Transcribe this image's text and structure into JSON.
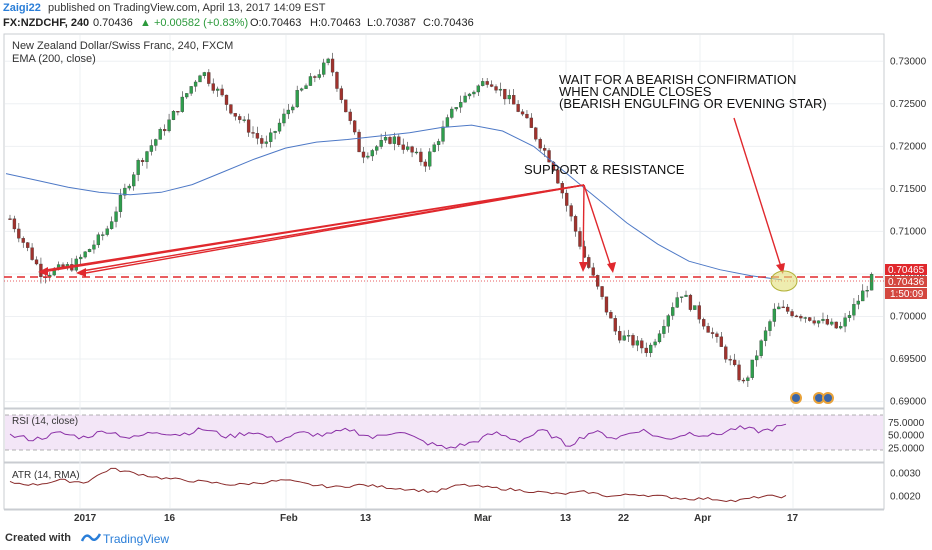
{
  "header": {
    "author": "Zaigi22",
    "published": "published on TradingView.com, April 13, 2017 14:09 EST",
    "symbol": "FX:NZDCHF, 240",
    "price": "0.70436",
    "change": "▲ +0.00582 (+0.83%)",
    "open": "O:0.70463",
    "high": "H:0.70463",
    "low": "L:0.70387",
    "close": "C:0.70436"
  },
  "legend": {
    "instrument": "New Zealand Dollar/Swiss Franc, 240, FXCM",
    "ema": "EMA (200, close)"
  },
  "annotations": {
    "wait_line1": "WAIT FOR A BEARISH CONFIRMATION",
    "wait_line2": "WHEN CANDLE CLOSES",
    "wait_line3": "(BEARISH ENGULFING OR EVENING STAR)",
    "support": "SUPPORT & RESISTANCE"
  },
  "badges": {
    "price_top": "0.70465",
    "price_current": "0.70436",
    "countdown": "1:50:09"
  },
  "colors": {
    "up": "#2f9e4d",
    "down": "#a0322d",
    "ema": "#4e79c6",
    "annotation": "#e0282d",
    "rsi": "#8a2fa6",
    "atr": "#8a2a2a"
  },
  "chart_data": [
    {
      "type": "candlestick",
      "title": "New Zealand Dollar/Swiss Franc, 240, FXCM",
      "y_ticks": [
        "0.73000",
        "0.72500",
        "0.72000",
        "0.71500",
        "0.71000",
        "0.70500",
        "0.70000",
        "0.69500",
        "0.69000"
      ],
      "ylim": [
        0.6896,
        0.7325
      ],
      "x_ticks": [
        "2017",
        "16",
        "Feb",
        "13",
        "Mar",
        "13",
        "22",
        "Apr",
        "17"
      ],
      "series": [
        {
          "name": "EMA (200, close)",
          "values": [
            0.7168,
            0.716,
            0.7152,
            0.7146,
            0.7143,
            0.7146,
            0.7155,
            0.717,
            0.7185,
            0.7198,
            0.7205,
            0.7208,
            0.7212,
            0.7216,
            0.7222,
            0.7225,
            0.7218,
            0.72,
            0.717,
            0.714,
            0.711,
            0.7085,
            0.7065,
            0.7055,
            0.7048,
            0.7043
          ]
        },
        {
          "name": "Close (approx.)",
          "values": [
            0.7115,
            0.705,
            0.706,
            0.71,
            0.718,
            0.723,
            0.729,
            0.724,
            0.72,
            0.726,
            0.73,
            0.719,
            0.721,
            0.718,
            0.725,
            0.728,
            0.724,
            0.718,
            0.707,
            0.698,
            0.696,
            0.703,
            0.698,
            0.692,
            0.701,
            0.7,
            0.6985,
            0.7044
          ]
        }
      ],
      "horizontal_lines": [
        0.70465,
        0.70436
      ],
      "annotations": [
        "SUPPORT & RESISTANCE",
        "WAIT FOR A BEARISH CONFIRMATION",
        "WHEN CANDLE CLOSES",
        "(BEARISH ENGULFING OR EVENING STAR)"
      ]
    },
    {
      "type": "line",
      "title": "RSI (14, close)",
      "y_ticks": [
        "75.0000",
        "50.0000",
        "25.0000"
      ],
      "ylim": [
        0,
        100
      ],
      "bands": [
        30,
        70
      ],
      "series": [
        {
          "name": "RSI (14, close)",
          "values": [
            50,
            42,
            55,
            46,
            60,
            44,
            58,
            52,
            63,
            47,
            58,
            40,
            55,
            50,
            62,
            45,
            60,
            38,
            25,
            35,
            55,
            40,
            60,
            30,
            58,
            45,
            62,
            42,
            55,
            50,
            65,
            58,
            70
          ]
        }
      ]
    },
    {
      "type": "line",
      "title": "ATR (14, RMA)",
      "y_ticks": [
        "0.0030",
        "0.0020"
      ],
      "ylim": [
        0.0015,
        0.0034
      ],
      "series": [
        {
          "name": "ATR (14, RMA)",
          "values": [
            0.0026,
            0.0025,
            0.0027,
            0.0026,
            0.0032,
            0.003,
            0.0028,
            0.0027,
            0.0026,
            0.0025,
            0.0026,
            0.0027,
            0.0025,
            0.0024,
            0.0025,
            0.0024,
            0.0023,
            0.0022,
            0.0025,
            0.0024,
            0.0023,
            0.0022,
            0.0021,
            0.0022,
            0.002,
            0.0021,
            0.002,
            0.0019,
            0.0019,
            0.0018,
            0.002,
            0.002
          ]
        }
      ]
    }
  ]
}
